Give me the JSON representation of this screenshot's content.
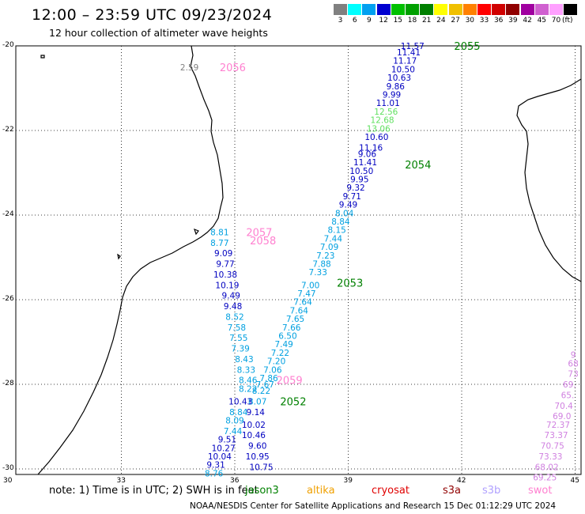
{
  "header": {
    "title": "12:00 – 23:59 UTC 09/23/2024",
    "subtitle": "12 hour collection of altimeter wave heights"
  },
  "legend": {
    "unit": "(ft)",
    "bins": [
      {
        "label": "3",
        "color": "#808080"
      },
      {
        "label": "6",
        "color": "#00ffff"
      },
      {
        "label": "9",
        "color": "#00a0f0"
      },
      {
        "label": "12",
        "color": "#0000d0"
      },
      {
        "label": "15",
        "color": "#00c000"
      },
      {
        "label": "18",
        "color": "#00a000"
      },
      {
        "label": "21",
        "color": "#008000"
      },
      {
        "label": "24",
        "color": "#ffff00"
      },
      {
        "label": "27",
        "color": "#f0c000"
      },
      {
        "label": "30",
        "color": "#ff8000"
      },
      {
        "label": "33",
        "color": "#ff0000"
      },
      {
        "label": "36",
        "color": "#d00000"
      },
      {
        "label": "39",
        "color": "#900000"
      },
      {
        "label": "42",
        "color": "#a000a0"
      },
      {
        "label": "45",
        "color": "#d060d0"
      },
      {
        "label": "70",
        "color": "#ffa0ff"
      },
      {
        "label": "",
        "color": "#000000"
      }
    ]
  },
  "axes": {
    "lon": [
      30,
      33,
      36,
      39,
      42,
      45
    ],
    "lat": [
      -20,
      -22,
      -24,
      -26,
      -28,
      -30
    ]
  },
  "colors": {
    "cyan": "#00a0e0",
    "blue": "#0000c0",
    "lightgreen": "#60e060",
    "green": "#008000",
    "pink": "#ff80d0",
    "gray": "#808080",
    "violet": "#d080e0"
  },
  "passes": [
    {
      "label": "2055",
      "lon": 41.8,
      "lat": -20.0,
      "color": "green"
    },
    {
      "label": "2054",
      "lon": 40.5,
      "lat": -22.8,
      "color": "green"
    },
    {
      "label": "2053",
      "lon": 38.7,
      "lat": -25.6,
      "color": "green"
    },
    {
      "label": "2052",
      "lon": 37.2,
      "lat": -28.4,
      "color": "green"
    },
    {
      "label": "2056",
      "lon": 35.6,
      "lat": -20.5,
      "color": "pink"
    },
    {
      "label": "2057",
      "lon": 36.3,
      "lat": -24.4,
      "color": "pink"
    },
    {
      "label": "2058",
      "lon": 36.4,
      "lat": -24.6,
      "color": "pink"
    },
    {
      "label": "2059",
      "lon": 37.1,
      "lat": -27.9,
      "color": "pink"
    }
  ],
  "readings": [
    {
      "v": "11.57",
      "lon": 40.7,
      "lat": -20.0,
      "color": "blue"
    },
    {
      "v": "11.41",
      "lon": 40.6,
      "lat": -20.15,
      "color": "blue"
    },
    {
      "v": "11.17",
      "lon": 40.5,
      "lat": -20.35,
      "color": "blue"
    },
    {
      "v": "10.50",
      "lon": 40.45,
      "lat": -20.55,
      "color": "blue"
    },
    {
      "v": "10.63",
      "lon": 40.35,
      "lat": -20.75,
      "color": "blue"
    },
    {
      "v": "9.86",
      "lon": 40.25,
      "lat": -20.95,
      "color": "blue"
    },
    {
      "v": "9.99",
      "lon": 40.15,
      "lat": -21.15,
      "color": "blue"
    },
    {
      "v": "11.01",
      "lon": 40.05,
      "lat": -21.35,
      "color": "blue"
    },
    {
      "v": "12.56",
      "lon": 40.0,
      "lat": -21.55,
      "color": "lightgreen"
    },
    {
      "v": "12.68",
      "lon": 39.9,
      "lat": -21.75,
      "color": "lightgreen"
    },
    {
      "v": "13.06",
      "lon": 39.8,
      "lat": -21.95,
      "color": "lightgreen"
    },
    {
      "v": "10.60",
      "lon": 39.75,
      "lat": -22.15,
      "color": "blue"
    },
    {
      "v": "11.16",
      "lon": 39.6,
      "lat": -22.4,
      "color": "blue"
    },
    {
      "v": "9.06",
      "lon": 39.5,
      "lat": -22.55,
      "color": "blue"
    },
    {
      "v": "11.41",
      "lon": 39.45,
      "lat": -22.75,
      "color": "blue"
    },
    {
      "v": "10.50",
      "lon": 39.35,
      "lat": -22.95,
      "color": "blue"
    },
    {
      "v": "9.95",
      "lon": 39.3,
      "lat": -23.15,
      "color": "blue"
    },
    {
      "v": "9.32",
      "lon": 39.2,
      "lat": -23.35,
      "color": "blue"
    },
    {
      "v": "9.71",
      "lon": 39.1,
      "lat": -23.55,
      "color": "blue"
    },
    {
      "v": "9.49",
      "lon": 39.0,
      "lat": -23.75,
      "color": "blue"
    },
    {
      "v": "8.04",
      "lon": 38.9,
      "lat": -23.95,
      "color": "cyan"
    },
    {
      "v": "8.84",
      "lon": 38.8,
      "lat": -24.15,
      "color": "cyan"
    },
    {
      "v": "8.15",
      "lon": 38.7,
      "lat": -24.35,
      "color": "cyan"
    },
    {
      "v": "7.44",
      "lon": 38.6,
      "lat": -24.55,
      "color": "cyan"
    },
    {
      "v": "7.09",
      "lon": 38.5,
      "lat": -24.75,
      "color": "cyan"
    },
    {
      "v": "7.23",
      "lon": 38.4,
      "lat": -24.95,
      "color": "cyan"
    },
    {
      "v": "7.88",
      "lon": 38.3,
      "lat": -25.15,
      "color": "cyan"
    },
    {
      "v": "7.33",
      "lon": 38.2,
      "lat": -25.35,
      "color": "cyan"
    },
    {
      "v": "7.00",
      "lon": 38.0,
      "lat": -25.65,
      "color": "cyan"
    },
    {
      "v": "7.47",
      "lon": 37.9,
      "lat": -25.85,
      "color": "cyan"
    },
    {
      "v": "7.64",
      "lon": 37.8,
      "lat": -26.05,
      "color": "cyan"
    },
    {
      "v": "7.64",
      "lon": 37.7,
      "lat": -26.25,
      "color": "cyan"
    },
    {
      "v": "7.65",
      "lon": 37.6,
      "lat": -26.45,
      "color": "cyan"
    },
    {
      "v": "7.66",
      "lon": 37.5,
      "lat": -26.65,
      "color": "cyan"
    },
    {
      "v": "6.50",
      "lon": 37.4,
      "lat": -26.85,
      "color": "cyan"
    },
    {
      "v": "7.49",
      "lon": 37.3,
      "lat": -27.05,
      "color": "cyan"
    },
    {
      "v": "7.22",
      "lon": 37.2,
      "lat": -27.25,
      "color": "cyan"
    },
    {
      "v": "7.20",
      "lon": 37.1,
      "lat": -27.45,
      "color": "cyan"
    },
    {
      "v": "7.06",
      "lon": 37.0,
      "lat": -27.65,
      "color": "cyan"
    },
    {
      "v": "7.86",
      "lon": 36.9,
      "lat": -27.85,
      "color": "cyan"
    },
    {
      "v": "7.67",
      "lon": 36.8,
      "lat": -28.0,
      "color": "cyan"
    },
    {
      "v": "8.22",
      "lon": 36.7,
      "lat": -28.15,
      "color": "cyan"
    },
    {
      "v": "8.07",
      "lon": 36.6,
      "lat": -28.4,
      "color": "cyan"
    },
    {
      "v": "9.14",
      "lon": 36.55,
      "lat": -28.65,
      "color": "blue"
    },
    {
      "v": "10.02",
      "lon": 36.5,
      "lat": -28.95,
      "color": "blue"
    },
    {
      "v": "10.46",
      "lon": 36.5,
      "lat": -29.2,
      "color": "blue"
    },
    {
      "v": "9.60",
      "lon": 36.6,
      "lat": -29.45,
      "color": "blue"
    },
    {
      "v": "10.95",
      "lon": 36.6,
      "lat": -29.7,
      "color": "blue"
    },
    {
      "v": "10.75",
      "lon": 36.7,
      "lat": -29.95,
      "color": "blue"
    },
    {
      "v": "8.81",
      "lon": 35.6,
      "lat": -24.4,
      "color": "cyan"
    },
    {
      "v": "8.77",
      "lon": 35.6,
      "lat": -24.65,
      "color": "cyan"
    },
    {
      "v": "9.09",
      "lon": 35.7,
      "lat": -24.9,
      "color": "blue"
    },
    {
      "v": "9.77",
      "lon": 35.75,
      "lat": -25.15,
      "color": "blue"
    },
    {
      "v": "10.38",
      "lon": 35.75,
      "lat": -25.4,
      "color": "blue"
    },
    {
      "v": "10.19",
      "lon": 35.8,
      "lat": -25.65,
      "color": "blue"
    },
    {
      "v": "9.49",
      "lon": 35.9,
      "lat": -25.9,
      "color": "blue"
    },
    {
      "v": "9.48",
      "lon": 35.95,
      "lat": -26.15,
      "color": "blue"
    },
    {
      "v": "8.52",
      "lon": 36.0,
      "lat": -26.4,
      "color": "cyan"
    },
    {
      "v": "7.58",
      "lon": 36.05,
      "lat": -26.65,
      "color": "cyan"
    },
    {
      "v": "7.55",
      "lon": 36.1,
      "lat": -26.9,
      "color": "cyan"
    },
    {
      "v": "7.39",
      "lon": 36.15,
      "lat": -27.15,
      "color": "cyan"
    },
    {
      "v": "8.43",
      "lon": 36.25,
      "lat": -27.4,
      "color": "cyan"
    },
    {
      "v": "8.33",
      "lon": 36.3,
      "lat": -27.65,
      "color": "cyan"
    },
    {
      "v": "8.46",
      "lon": 36.35,
      "lat": -27.9,
      "color": "cyan"
    },
    {
      "v": "8.22",
      "lon": 36.35,
      "lat": -28.1,
      "color": "cyan"
    },
    {
      "v": "10.43",
      "lon": 36.15,
      "lat": -28.4,
      "color": "blue"
    },
    {
      "v": "8.84",
      "lon": 36.1,
      "lat": -28.65,
      "color": "cyan"
    },
    {
      "v": "8.09",
      "lon": 36.0,
      "lat": -28.85,
      "color": "cyan"
    },
    {
      "v": "7.44",
      "lon": 35.95,
      "lat": -29.1,
      "color": "cyan"
    },
    {
      "v": "9.51",
      "lon": 35.8,
      "lat": -29.3,
      "color": "blue"
    },
    {
      "v": "10.27",
      "lon": 35.7,
      "lat": -29.5,
      "color": "blue"
    },
    {
      "v": "10.04",
      "lon": 35.6,
      "lat": -29.7,
      "color": "blue"
    },
    {
      "v": "9.31",
      "lon": 35.5,
      "lat": -29.9,
      "color": "blue"
    },
    {
      "v": "8.76",
      "lon": 35.45,
      "lat": -30.1,
      "color": "cyan"
    },
    {
      "v": "2.59",
      "lon": 34.8,
      "lat": -20.5,
      "color": "gray"
    },
    {
      "v": "9",
      "lon": 44.95,
      "lat": -27.3,
      "color": "violet"
    },
    {
      "v": "68",
      "lon": 44.95,
      "lat": -27.5,
      "color": "violet"
    },
    {
      "v": "73",
      "lon": 44.95,
      "lat": -27.75,
      "color": "violet"
    },
    {
      "v": "69.",
      "lon": 44.85,
      "lat": -28.0,
      "color": "violet"
    },
    {
      "v": "65.",
      "lon": 44.8,
      "lat": -28.25,
      "color": "violet"
    },
    {
      "v": "70.4",
      "lon": 44.7,
      "lat": -28.5,
      "color": "violet"
    },
    {
      "v": "69.0",
      "lon": 44.65,
      "lat": -28.75,
      "color": "violet"
    },
    {
      "v": "72.37",
      "lon": 44.55,
      "lat": -28.95,
      "color": "violet"
    },
    {
      "v": "73.37",
      "lon": 44.5,
      "lat": -29.2,
      "color": "violet"
    },
    {
      "v": "70.75",
      "lon": 44.4,
      "lat": -29.45,
      "color": "violet"
    },
    {
      "v": "73.33",
      "lon": 44.35,
      "lat": -29.7,
      "color": "violet"
    },
    {
      "v": "68.02",
      "lon": 44.25,
      "lat": -29.95,
      "color": "violet"
    },
    {
      "v": "69.25",
      "lon": 44.2,
      "lat": -30.2,
      "color": "violet"
    }
  ],
  "footer": {
    "note": "note: 1) Time is in UTC; 2) SWH is in feet",
    "missions": [
      {
        "label": "jason3",
        "color": "#008000"
      },
      {
        "label": "altika",
        "color": "#f0a000"
      },
      {
        "label": "cryosat",
        "color": "#e00000"
      },
      {
        "label": "s3a",
        "color": "#900000"
      },
      {
        "label": "s3b",
        "color": "#b0a0ff"
      },
      {
        "label": "swot",
        "color": "#ff80d0"
      }
    ],
    "credit": "NOAA/NESDIS Center for Satellite Applications and Research    15 Dec 01:12:29 UTC 2024"
  }
}
